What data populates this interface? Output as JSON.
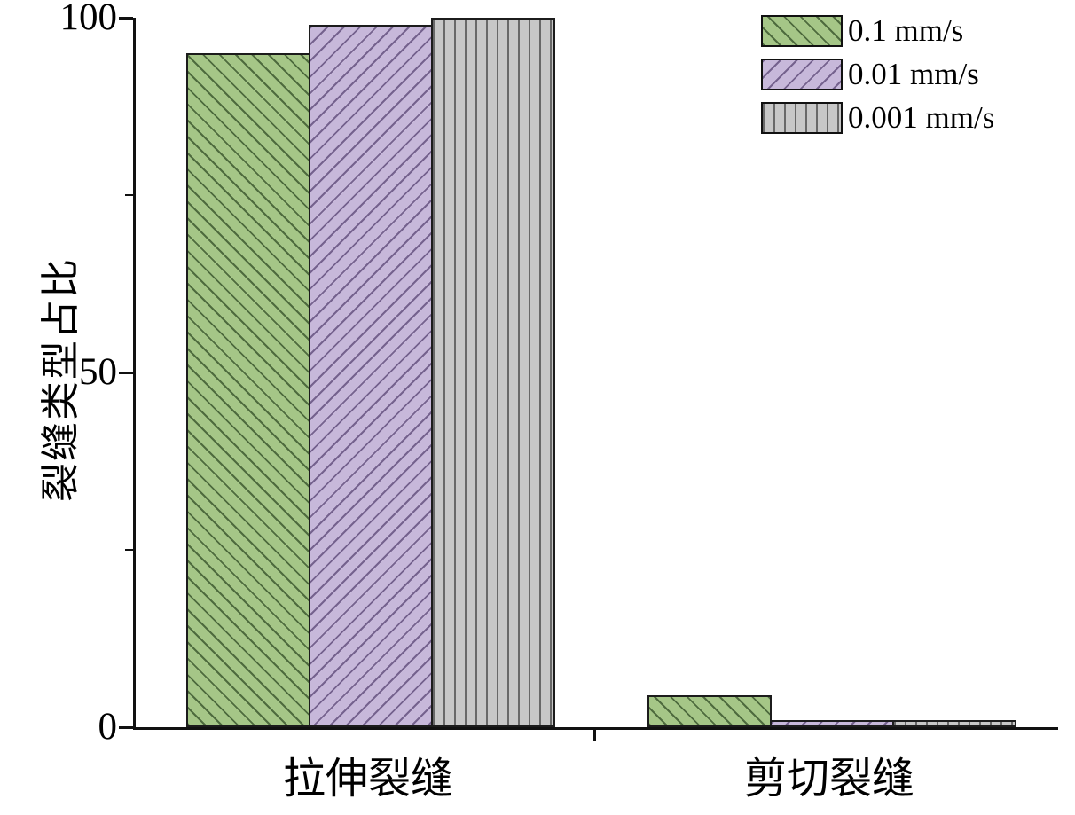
{
  "chart_data": {
    "type": "bar",
    "title": "",
    "xlabel": "",
    "ylabel": "裂缝类型占比",
    "categories": [
      "拉伸裂缝",
      "剪切裂缝"
    ],
    "series": [
      {
        "name": "0.1 mm/s",
        "values": [
          95,
          4.5
        ],
        "fill": "#a5c687",
        "hatch": "diag-back",
        "hatch_color": "#4e6b3e"
      },
      {
        "name": "0.01 mm/s",
        "values": [
          99,
          1
        ],
        "fill": "#c7b8da",
        "hatch": "diag-fwd",
        "hatch_color": "#75628e"
      },
      {
        "name": "0.001 mm/s",
        "values": [
          100,
          1
        ],
        "fill": "#c7c7c7",
        "hatch": "vert",
        "hatch_color": "#686868"
      }
    ],
    "ylim": [
      0,
      100
    ],
    "yticks": [
      {
        "value": 0,
        "label": "0"
      },
      {
        "value": 50,
        "label": "50"
      },
      {
        "value": 100,
        "label": "100"
      }
    ],
    "minor_yticks": [
      25,
      75
    ],
    "grid": false,
    "legend_position": "top-right",
    "axis_color": "#111111"
  }
}
